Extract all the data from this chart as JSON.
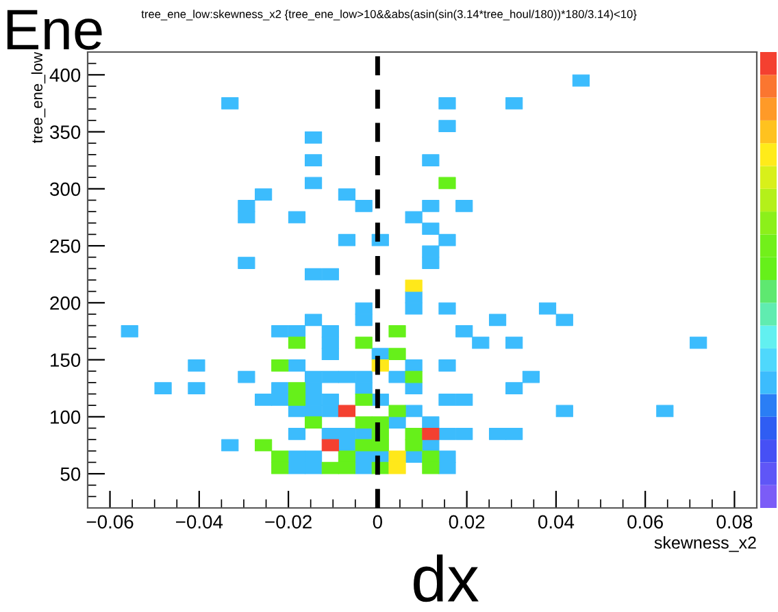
{
  "chart_data": {
    "type": "scatter",
    "marker": "square",
    "title": "tree_ene_low:skewness_x2 {tree_ene_low>10&&abs(asin(sin(3.14*tree_houl/180))*180/3.14)<10}",
    "xlabel": "skewness_x2",
    "ylabel": "tree_ene_low",
    "annotations": [
      "Ene",
      "dx"
    ],
    "xlim": [
      -0.065,
      0.085
    ],
    "ylim": [
      20,
      420
    ],
    "xticks": [
      {
        "value": -0.06,
        "label": "−0.06"
      },
      {
        "value": -0.04,
        "label": "−0.04"
      },
      {
        "value": -0.02,
        "label": "−0.02"
      },
      0,
      0.02,
      0.04,
      0.06,
      0.08,
      {
        "value": -0.055,
        "label": null
      },
      {
        "value": -0.05,
        "label": null
      },
      {
        "value": -0.045,
        "label": null
      },
      {
        "value": -0.035,
        "label": null
      },
      {
        "value": -0.03,
        "label": null
      },
      {
        "value": -0.025,
        "label": null
      },
      {
        "value": -0.015,
        "label": null
      },
      {
        "value": -0.01,
        "label": null
      },
      {
        "value": -0.005,
        "label": null
      },
      {
        "value": 0.005,
        "label": null
      },
      {
        "value": 0.01,
        "label": null
      },
      {
        "value": 0.015,
        "label": null
      },
      {
        "value": 0.025,
        "label": null
      },
      {
        "value": 0.03,
        "label": null
      },
      {
        "value": 0.035,
        "label": null
      },
      {
        "value": 0.045,
        "label": null
      },
      {
        "value": 0.05,
        "label": null
      },
      {
        "value": 0.055,
        "label": null
      },
      {
        "value": 0.065,
        "label": null
      },
      {
        "value": 0.07,
        "label": null
      },
      {
        "value": 0.075,
        "label": null
      }
    ],
    "yticks": [
      50,
      100,
      150,
      200,
      250,
      300,
      350,
      400,
      {
        "value": 30,
        "label": null
      },
      {
        "value": 40,
        "label": null
      },
      {
        "value": 60,
        "label": null
      },
      {
        "value": 70,
        "label": null
      },
      {
        "value": 80,
        "label": null
      },
      {
        "value": 90,
        "label": null
      },
      {
        "value": 110,
        "label": null
      },
      {
        "value": 120,
        "label": null
      },
      {
        "value": 130,
        "label": null
      },
      {
        "value": 140,
        "label": null
      },
      {
        "value": 160,
        "label": null
      },
      {
        "value": 170,
        "label": null
      },
      {
        "value": 180,
        "label": null
      },
      {
        "value": 190,
        "label": null
      },
      {
        "value": 210,
        "label": null
      },
      {
        "value": 220,
        "label": null
      },
      {
        "value": 230,
        "label": null
      },
      {
        "value": 240,
        "label": null
      },
      {
        "value": 260,
        "label": null
      },
      {
        "value": 270,
        "label": null
      },
      {
        "value": 280,
        "label": null
      },
      {
        "value": 290,
        "label": null
      },
      {
        "value": 310,
        "label": null
      },
      {
        "value": 320,
        "label": null
      },
      {
        "value": 330,
        "label": null
      },
      {
        "value": 340,
        "label": null
      },
      {
        "value": 360,
        "label": null
      },
      {
        "value": 370,
        "label": null
      },
      {
        "value": 380,
        "label": null
      },
      {
        "value": 390,
        "label": null
      },
      {
        "value": 410,
        "label": null
      }
    ],
    "ref_lines": [
      {
        "axis": "x",
        "value": 0,
        "color": "#000000",
        "line_style": "dashed"
      }
    ],
    "series": [
      {
        "color": "#3cbcfd",
        "x": [
          0.0456,
          -0.0331,
          0.0156,
          0.0306,
          0.0156,
          -0.0144,
          -0.0144,
          0.0119,
          -0.0144,
          -0.0256,
          -0.0069,
          -0.0294,
          -0.0031,
          0.0119,
          0.0194,
          -0.0294,
          -0.0181,
          0.0081,
          0.0119,
          -0.0069,
          0.0006,
          0.0156,
          0.0119,
          -0.0294,
          0.0119,
          -0.0144,
          -0.0106,
          0.0081,
          -0.0031,
          0.0081,
          0.0156,
          0.0381,
          -0.0144,
          -0.0031,
          0.0269,
          0.0419,
          -0.0556,
          -0.0219,
          -0.0181,
          -0.0106,
          0.0194,
          -0.0106,
          0.0231,
          0.0306,
          0.0719,
          -0.0106,
          0.0006,
          -0.0406,
          -0.0181,
          0.0081,
          0.0156,
          -0.0294,
          -0.0144,
          -0.0106,
          -0.0069,
          -0.0031,
          0.0044,
          0.0344,
          -0.0481,
          -0.0406,
          -0.0219,
          -0.0144,
          -0.0031,
          0.0081,
          0.0306,
          -0.0256,
          -0.0219,
          -0.0144,
          -0.0106,
          0.0006,
          0.0156,
          0.0194,
          -0.0181,
          -0.0144,
          -0.0106,
          0.0081,
          0.0419,
          0.0644,
          0.0044,
          0.0119,
          -0.0181,
          -0.0106,
          -0.0069,
          -0.0031,
          0.0156,
          0.0194,
          0.0269,
          0.0306,
          -0.0331,
          -0.0069,
          0.0119,
          -0.0181,
          -0.0144,
          -0.0031,
          0.0006,
          0.0081,
          0.0156,
          -0.0181,
          -0.0144,
          -0.0031,
          0.0156
        ],
        "values": [
          395,
          375,
          375,
          375,
          355,
          345,
          325,
          325,
          305,
          295,
          295,
          285,
          285,
          285,
          285,
          275,
          275,
          275,
          265,
          255,
          255,
          255,
          245,
          235,
          235,
          225,
          225,
          205,
          195,
          195,
          195,
          195,
          185,
          185,
          185,
          185,
          175,
          175,
          175,
          175,
          175,
          165,
          165,
          165,
          165,
          155,
          155,
          145,
          145,
          145,
          145,
          135,
          135,
          135,
          135,
          135,
          135,
          135,
          125,
          125,
          125,
          125,
          125,
          125,
          125,
          115,
          115,
          115,
          115,
          115,
          115,
          115,
          105,
          105,
          105,
          105,
          105,
          105,
          95,
          95,
          85,
          85,
          85,
          85,
          85,
          85,
          85,
          85,
          75,
          75,
          75,
          65,
          65,
          65,
          65,
          65,
          65,
          55,
          55,
          55,
          55
        ]
      },
      {
        "color": "#66f01a",
        "x": [
          0.0156,
          0.0044,
          -0.0181,
          -0.0031,
          0.0044,
          -0.0219,
          0.0081,
          -0.0181,
          -0.0181,
          -0.0031,
          0.0044,
          -0.0144,
          -0.0031,
          0.0006,
          0.0006,
          0.0081,
          -0.0256,
          -0.0031,
          0.0006,
          0.0081,
          -0.0219,
          -0.0069,
          0.0119,
          -0.0219,
          -0.0106,
          -0.0069,
          0.0006,
          0.0119
        ],
        "values": [
          305,
          175,
          165,
          165,
          155,
          145,
          135,
          125,
          115,
          115,
          105,
          95,
          95,
          95,
          85,
          85,
          75,
          75,
          75,
          75,
          65,
          65,
          65,
          55,
          55,
          55,
          55,
          55
        ]
      },
      {
        "color": "#ffe81a",
        "x": [
          0.0081,
          0.0006,
          0.0044,
          0.0044
        ],
        "values": [
          215,
          145,
          65,
          55
        ]
      },
      {
        "color": "#f44030",
        "x": [
          -0.0069,
          0.0119,
          -0.0106
        ],
        "values": [
          105,
          85,
          75
        ]
      }
    ]
  }
}
